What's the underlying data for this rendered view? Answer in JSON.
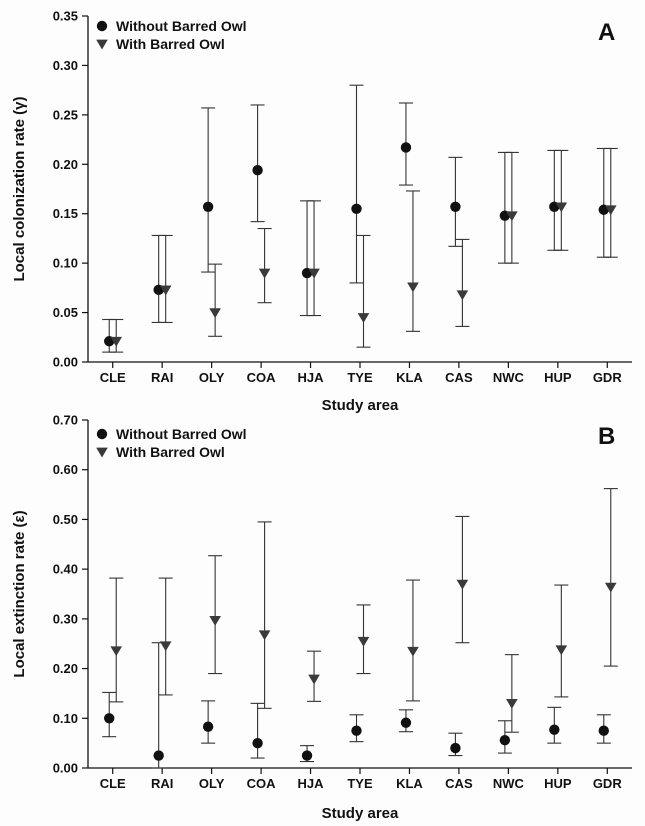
{
  "chart_data": [
    {
      "type": "scatter",
      "panel_label": "A",
      "ylabel": "Local colonization rate (γ)",
      "xlabel": "Study area",
      "ylim": [
        0,
        0.35
      ],
      "yticks": [
        "0.00",
        "0.05",
        "0.10",
        "0.15",
        "0.20",
        "0.25",
        "0.30",
        "0.35"
      ],
      "categories": [
        "CLE",
        "RAI",
        "OLY",
        "COA",
        "HJA",
        "TYE",
        "KLA",
        "CAS",
        "NWC",
        "HUP",
        "GDR"
      ],
      "legend_position": "top-left",
      "series": [
        {
          "name": "Without Barred Owl",
          "marker": "circle",
          "values": [
            0.021,
            0.073,
            0.157,
            0.194,
            0.09,
            0.155,
            0.217,
            0.157,
            0.148,
            0.157,
            0.154
          ],
          "lower": [
            0.01,
            0.04,
            0.091,
            0.142,
            0.047,
            0.08,
            0.179,
            0.117,
            0.1,
            0.113,
            0.106
          ],
          "upper": [
            0.043,
            0.128,
            0.257,
            0.26,
            0.163,
            0.28,
            0.262,
            0.207,
            0.212,
            0.214,
            0.216
          ]
        },
        {
          "name": "With Barred Owl",
          "marker": "triangle-down",
          "values": [
            0.021,
            0.073,
            0.05,
            0.09,
            0.09,
            0.045,
            0.076,
            0.068,
            0.148,
            0.157,
            0.154
          ],
          "lower": [
            0.01,
            0.04,
            0.026,
            0.06,
            0.047,
            0.015,
            0.031,
            0.036,
            0.1,
            0.113,
            0.106
          ],
          "upper": [
            0.043,
            0.128,
            0.099,
            0.135,
            0.163,
            0.128,
            0.173,
            0.124,
            0.212,
            0.214,
            0.216
          ]
        }
      ]
    },
    {
      "type": "scatter",
      "panel_label": "B",
      "ylabel": "Local extinction rate (ε)",
      "xlabel": "Study area",
      "ylim": [
        0,
        0.7
      ],
      "yticks": [
        "0.00",
        "0.10",
        "0.20",
        "0.30",
        "0.40",
        "0.50",
        "0.60",
        "0.70"
      ],
      "categories": [
        "CLE",
        "RAI",
        "OLY",
        "COA",
        "HJA",
        "TYE",
        "KLA",
        "CAS",
        "NWC",
        "HUP",
        "GDR"
      ],
      "legend_position": "top-left",
      "series": [
        {
          "name": "Without Barred Owl",
          "marker": "circle",
          "values": [
            0.1,
            0.025,
            0.083,
            0.05,
            0.025,
            0.075,
            0.091,
            0.04,
            0.056,
            0.077,
            0.075
          ],
          "lower": [
            0.063,
            0.0,
            0.05,
            0.02,
            0.013,
            0.053,
            0.073,
            0.025,
            0.03,
            0.05,
            0.05
          ],
          "upper": [
            0.152,
            0.252,
            0.135,
            0.13,
            0.045,
            0.107,
            0.117,
            0.07,
            0.095,
            0.122,
            0.107
          ]
        },
        {
          "name": "With Barred Owl",
          "marker": "triangle-down",
          "values": [
            0.236,
            0.246,
            0.297,
            0.268,
            0.179,
            0.255,
            0.235,
            0.37,
            0.13,
            0.238,
            0.364
          ],
          "lower": [
            0.133,
            0.147,
            0.19,
            0.12,
            0.134,
            0.19,
            0.135,
            0.252,
            0.072,
            0.143,
            0.205
          ],
          "upper": [
            0.382,
            0.382,
            0.427,
            0.495,
            0.235,
            0.328,
            0.378,
            0.506,
            0.228,
            0.368,
            0.562
          ]
        }
      ]
    }
  ]
}
